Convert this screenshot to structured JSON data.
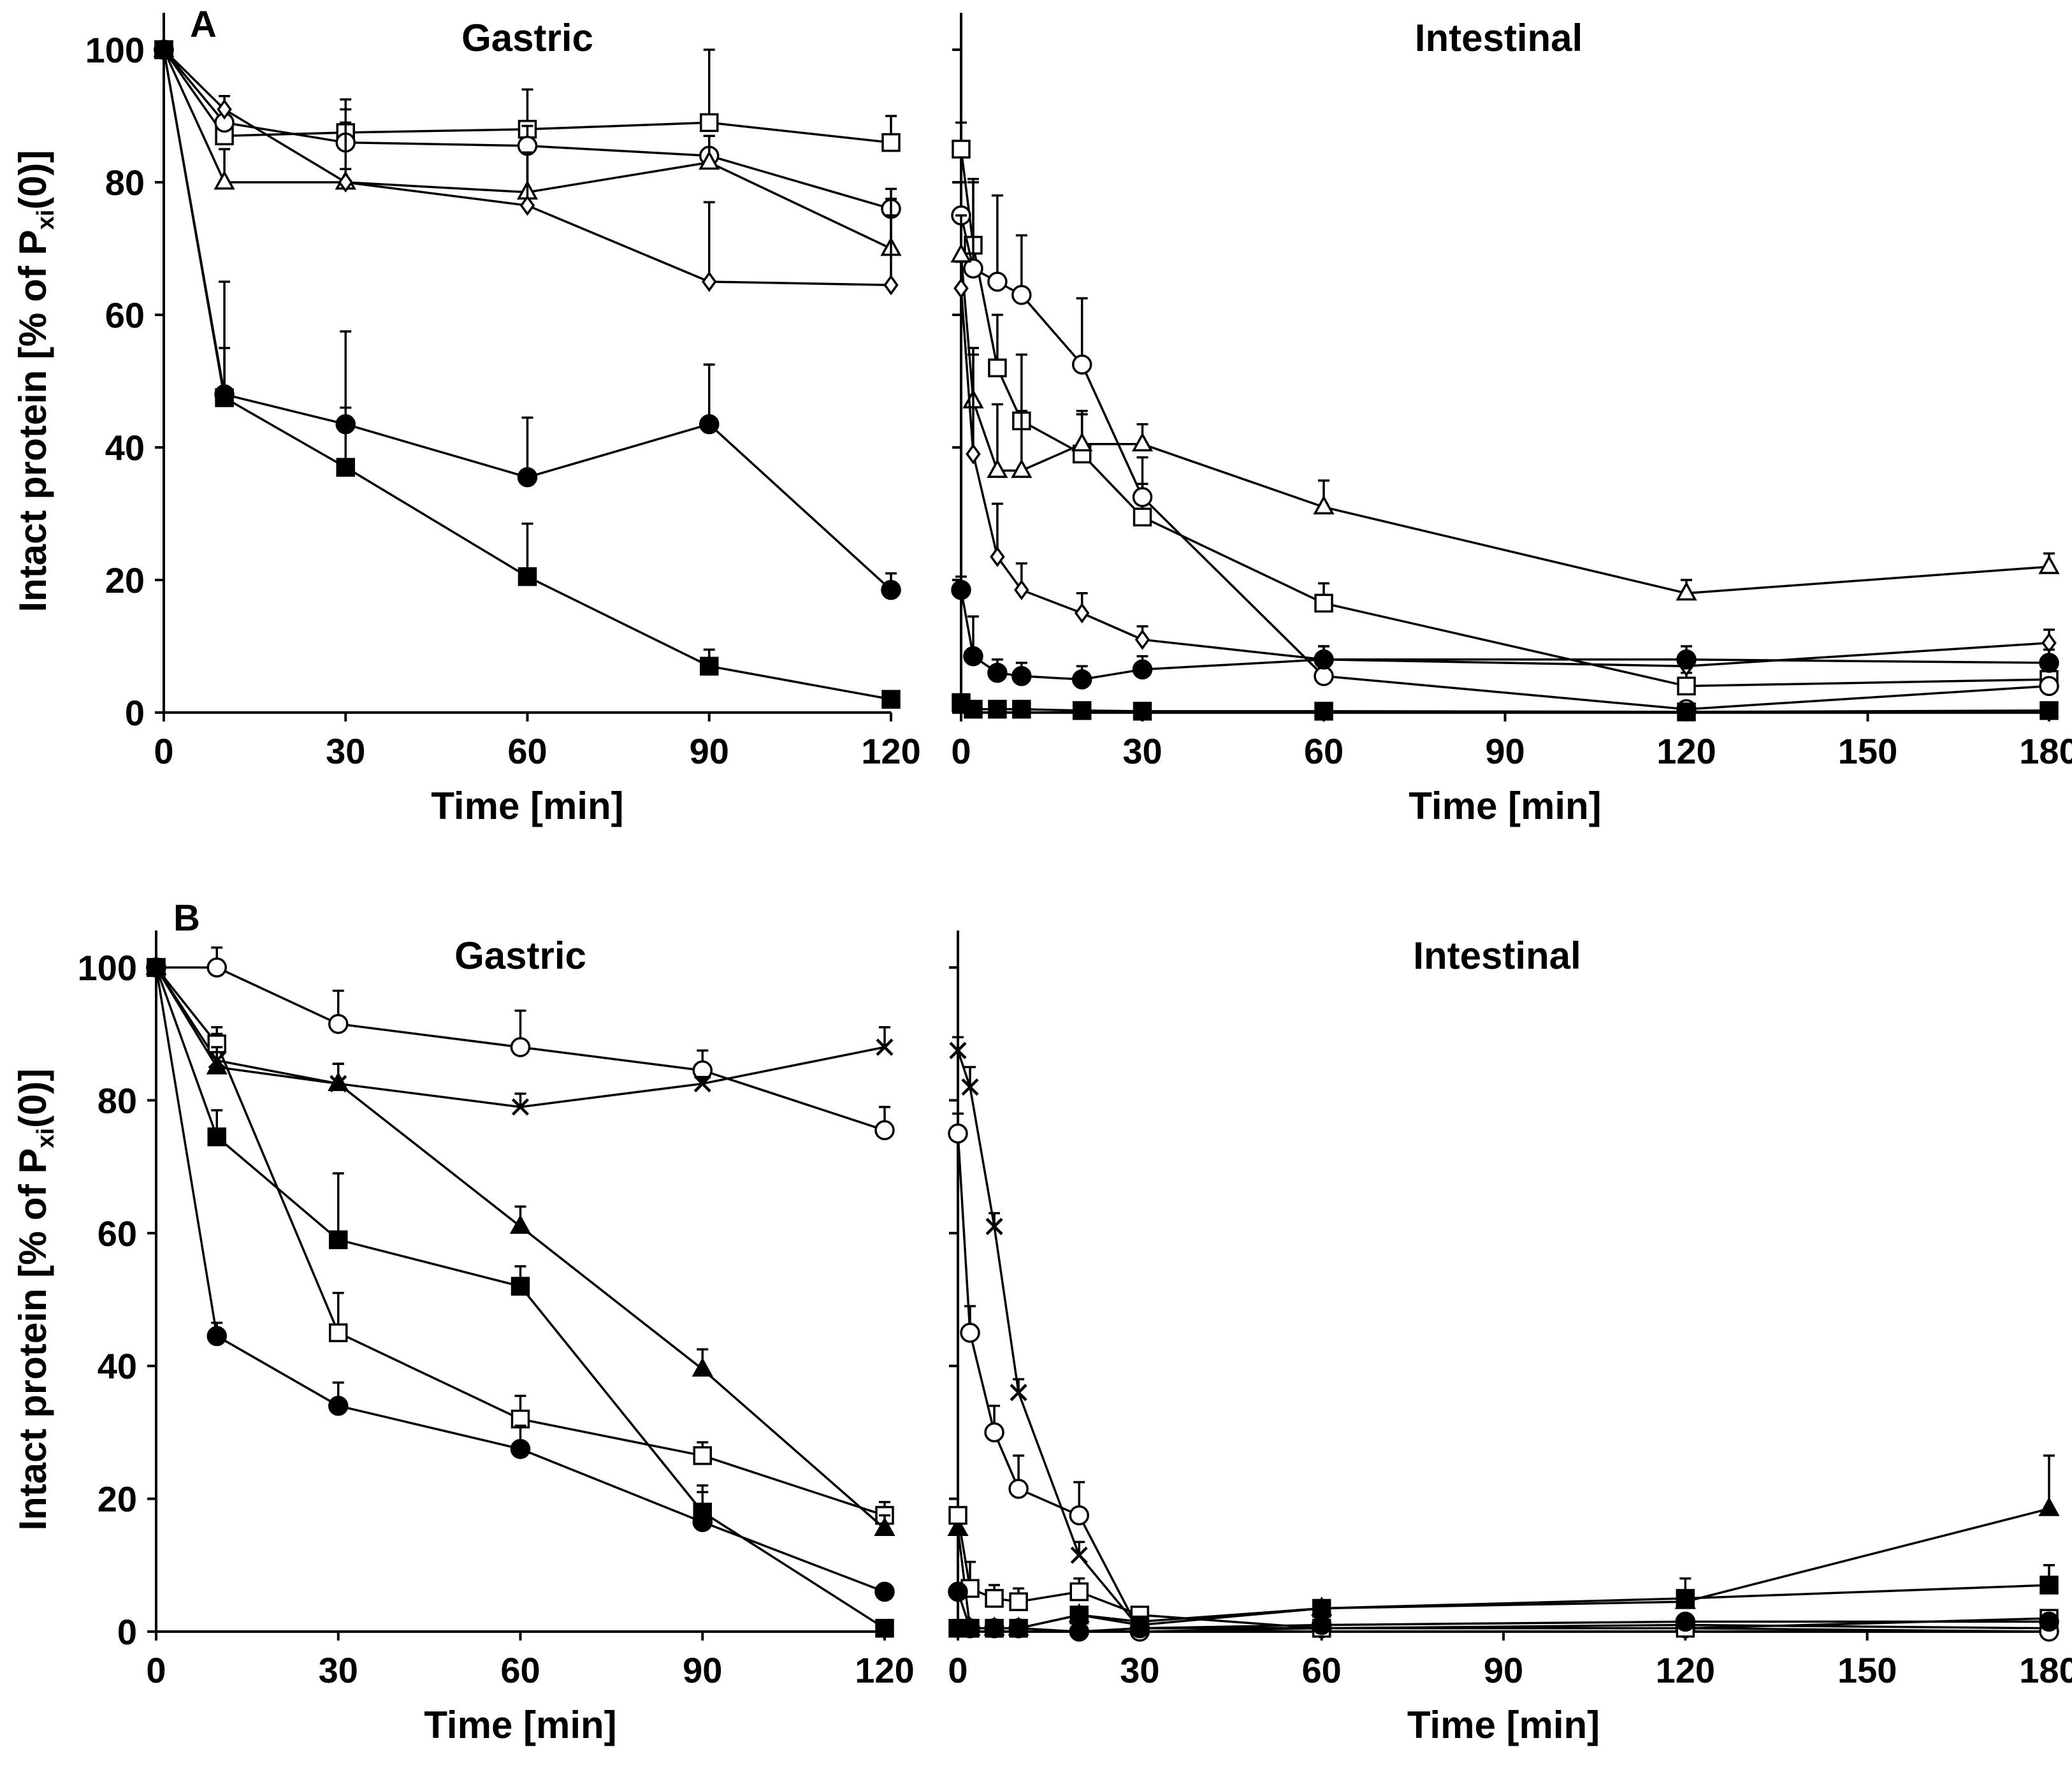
{
  "chart_data": [
    {
      "panel": "A",
      "type": "line",
      "shared_ylabel": "Intact protein  [% of P",
      "ylabel_sub": "xi",
      "ylabel_tail": "(0)]",
      "ylim": [
        0,
        100
      ],
      "yticks": [
        "0",
        "20",
        "40",
        "60",
        "80",
        "100"
      ],
      "subplots": [
        {
          "id": "A-gastric",
          "title": "Gastric",
          "xlabel": "Time [min]",
          "xlim": [
            0,
            120
          ],
          "xticks": [
            "0",
            "30",
            "60",
            "90",
            "120"
          ],
          "series": [
            {
              "marker": "square-open",
              "x": [
                0,
                10,
                30,
                60,
                90,
                120
              ],
              "y": [
                100,
                87,
                87.5,
                88,
                89,
                86
              ],
              "err": [
                0,
                3,
                5,
                6,
                11,
                4
              ]
            },
            {
              "marker": "circle-open",
              "x": [
                0,
                10,
                30,
                60,
                90,
                120
              ],
              "y": [
                100,
                89,
                86,
                85.5,
                84,
                76
              ],
              "err": [
                0,
                2,
                5,
                3,
                3,
                3
              ]
            },
            {
              "marker": "triangle-open",
              "x": [
                0,
                10,
                30,
                60,
                90,
                120
              ],
              "y": [
                100,
                80,
                80,
                78.5,
                83,
                70
              ],
              "err": [
                0,
                5,
                9,
                6,
                4,
                5
              ]
            },
            {
              "marker": "diamond-open",
              "x": [
                0,
                10,
                30,
                60,
                90,
                120
              ],
              "y": [
                100,
                91,
                80,
                76.5,
                65,
                64.5
              ],
              "err": [
                0,
                2,
                2,
                8,
                12,
                13
              ]
            },
            {
              "marker": "circle-filled",
              "x": [
                0,
                10,
                30,
                60,
                90,
                120
              ],
              "y": [
                100,
                48,
                43.5,
                35.5,
                43.5,
                18.5
              ],
              "err": [
                0,
                17,
                14,
                9,
                9,
                2.5
              ]
            },
            {
              "marker": "square-filled",
              "x": [
                0,
                10,
                30,
                60,
                90,
                120
              ],
              "y": [
                100,
                47.5,
                37,
                20.5,
                7,
                2
              ],
              "err": [
                0,
                7.5,
                9,
                8,
                2.5,
                1
              ]
            }
          ]
        },
        {
          "id": "A-intestinal",
          "title": "Intestinal",
          "xlabel": "Time [min]",
          "xlim": [
            0,
            180
          ],
          "xticks": [
            "0",
            "30",
            "60",
            "90",
            "120",
            "150",
            "180"
          ],
          "series": [
            {
              "marker": "square-open",
              "x": [
                0,
                2,
                6,
                10,
                20,
                30,
                60,
                120,
                180
              ],
              "y": [
                85,
                70.5,
                52,
                44,
                39,
                29.5,
                16.5,
                4,
                5
              ],
              "err": [
                4,
                10,
                8,
                10,
                6,
                5,
                3,
                2,
                1
              ]
            },
            {
              "marker": "circle-open",
              "x": [
                0,
                2,
                6,
                10,
                20,
                30,
                60,
                120,
                180
              ],
              "y": [
                75,
                67,
                65,
                63,
                52.5,
                32.5,
                5.5,
                0.5,
                4
              ],
              "err": [
                5,
                13,
                13,
                9,
                10,
                6,
                2,
                1,
                1
              ]
            },
            {
              "marker": "triangle-open",
              "x": [
                0,
                2,
                6,
                10,
                20,
                30,
                60,
                120,
                180
              ],
              "y": [
                69,
                47,
                36.5,
                36.5,
                40.5,
                40.5,
                31,
                18,
                22
              ],
              "err": [
                6,
                8,
                10,
                9,
                5,
                3,
                4,
                2,
                2
              ]
            },
            {
              "marker": "diamond-open",
              "x": [
                0,
                2,
                6,
                10,
                20,
                30,
                60,
                120,
                180
              ],
              "y": [
                64,
                39,
                23.5,
                18.5,
                15,
                11,
                8,
                7,
                10.5
              ],
              "err": [
                4,
                15,
                8,
                4,
                3,
                2,
                2,
                2,
                2
              ]
            },
            {
              "marker": "circle-filled",
              "x": [
                0,
                2,
                6,
                10,
                20,
                30,
                60,
                120,
                180
              ],
              "y": [
                18.5,
                8.5,
                6,
                5.5,
                5,
                6.5,
                8,
                8,
                7.5
              ],
              "err": [
                2,
                6,
                2,
                2,
                2,
                2,
                2,
                2,
                2
              ]
            },
            {
              "marker": "square-filled",
              "x": [
                0,
                2,
                6,
                10,
                20,
                30,
                60,
                120,
                180
              ],
              "y": [
                1.5,
                0.5,
                0.5,
                0.5,
                0.3,
                0.2,
                0.2,
                0.1,
                0.3
              ],
              "err": [
                1,
                0,
                0,
                0,
                0,
                0,
                0,
                0,
                0
              ]
            }
          ]
        }
      ]
    },
    {
      "panel": "B",
      "type": "line",
      "shared_ylabel": "Intact protein  [% of P",
      "ylabel_sub": "xi",
      "ylabel_tail": "(0)]",
      "ylim": [
        0,
        100
      ],
      "yticks": [
        "0",
        "20",
        "40",
        "60",
        "80",
        "100"
      ],
      "subplots": [
        {
          "id": "B-gastric",
          "title": "Gastric",
          "xlabel": "Time [min]",
          "xlim": [
            0,
            120
          ],
          "xticks": [
            "0",
            "30",
            "60",
            "90",
            "120"
          ],
          "series": [
            {
              "marker": "circle-open",
              "x": [
                0,
                10,
                30,
                60,
                90,
                120
              ],
              "y": [
                100,
                100,
                91.5,
                88,
                84.5,
                75.5
              ],
              "err": [
                0,
                3,
                5,
                5.5,
                3,
                3.5
              ]
            },
            {
              "marker": "cross",
              "x": [
                0,
                10,
                30,
                60,
                90,
                120
              ],
              "y": [
                100,
                86,
                82.5,
                79,
                82.5,
                88
              ],
              "err": [
                0,
                4,
                3,
                2,
                1,
                3
              ]
            },
            {
              "marker": "square-open",
              "x": [
                0,
                10,
                30,
                60,
                90,
                120
              ],
              "y": [
                100,
                88.5,
                45,
                32,
                26.5,
                17.5
              ],
              "err": [
                0,
                2.5,
                6,
                3.5,
                2,
                2
              ]
            },
            {
              "marker": "triangle-filled",
              "x": [
                0,
                10,
                30,
                60,
                90,
                120
              ],
              "y": [
                100,
                85,
                82.5,
                61,
                39.5,
                15.5
              ],
              "err": [
                0,
                3,
                3,
                3,
                3,
                2
              ]
            },
            {
              "marker": "square-filled",
              "x": [
                0,
                10,
                30,
                60,
                90,
                120
              ],
              "y": [
                100,
                74.5,
                59,
                52,
                18,
                0.5
              ],
              "err": [
                0,
                4,
                10,
                3,
                4,
                0.5
              ]
            },
            {
              "marker": "circle-filled",
              "x": [
                0,
                10,
                30,
                60,
                90,
                120
              ],
              "y": [
                100,
                44.5,
                34,
                27.5,
                16.5,
                6
              ],
              "err": [
                0,
                2,
                3.5,
                3.5,
                4.5,
                1
              ]
            }
          ]
        },
        {
          "id": "B-intestinal",
          "title": "Intestinal",
          "xlabel": "Time [min]",
          "xlim": [
            0,
            180
          ],
          "xticks": [
            "0",
            "30",
            "60",
            "90",
            "120",
            "150",
            "180"
          ],
          "series": [
            {
              "marker": "cross",
              "x": [
                0,
                2,
                6,
                10,
                20,
                30,
                60,
                120,
                180
              ],
              "y": [
                87.5,
                82,
                61,
                36,
                11.5,
                0.5,
                0.5,
                1,
                0.5
              ],
              "err": [
                2,
                3,
                2,
                2,
                2,
                0,
                0,
                0,
                0
              ]
            },
            {
              "marker": "circle-open",
              "x": [
                0,
                2,
                6,
                10,
                20,
                30,
                60,
                120,
                180
              ],
              "y": [
                75,
                45,
                30,
                21.5,
                17.5,
                0,
                0.5,
                0.5,
                0
              ],
              "err": [
                3,
                4,
                4,
                5,
                5,
                0,
                0,
                0,
                0
              ]
            },
            {
              "marker": "triangle-filled",
              "x": [
                0,
                2,
                6,
                10,
                20,
                30,
                60,
                120,
                180
              ],
              "y": [
                15.5,
                0.5,
                0.5,
                0.5,
                2.5,
                1.5,
                3.5,
                4.5,
                18.5
              ],
              "err": [
                1,
                0,
                0,
                0,
                1,
                0,
                1,
                1,
                8
              ]
            },
            {
              "marker": "square-open",
              "x": [
                0,
                2,
                6,
                10,
                20,
                30,
                60,
                120,
                180
              ],
              "y": [
                17.5,
                6.5,
                5,
                4.5,
                6,
                2.5,
                0.5,
                0.5,
                2
              ],
              "err": [
                1,
                4,
                2,
                2,
                2,
                1,
                0.5,
                0.5,
                1
              ]
            },
            {
              "marker": "square-filled",
              "x": [
                0,
                2,
                6,
                10,
                20,
                30,
                60,
                120,
                180
              ],
              "y": [
                0.5,
                0.5,
                0.5,
                0.5,
                2.5,
                1,
                3.5,
                5,
                7
              ],
              "err": [
                0,
                0,
                0,
                0,
                1,
                0,
                1,
                3,
                3
              ]
            },
            {
              "marker": "circle-filled",
              "x": [
                0,
                2,
                6,
                10,
                20,
                30,
                60,
                120,
                180
              ],
              "y": [
                6,
                0.5,
                0.5,
                0.5,
                0,
                0.5,
                1,
                1.5,
                1.5
              ],
              "err": [
                1,
                0,
                0,
                0,
                0,
                0,
                0,
                0,
                0
              ]
            }
          ]
        }
      ]
    }
  ]
}
